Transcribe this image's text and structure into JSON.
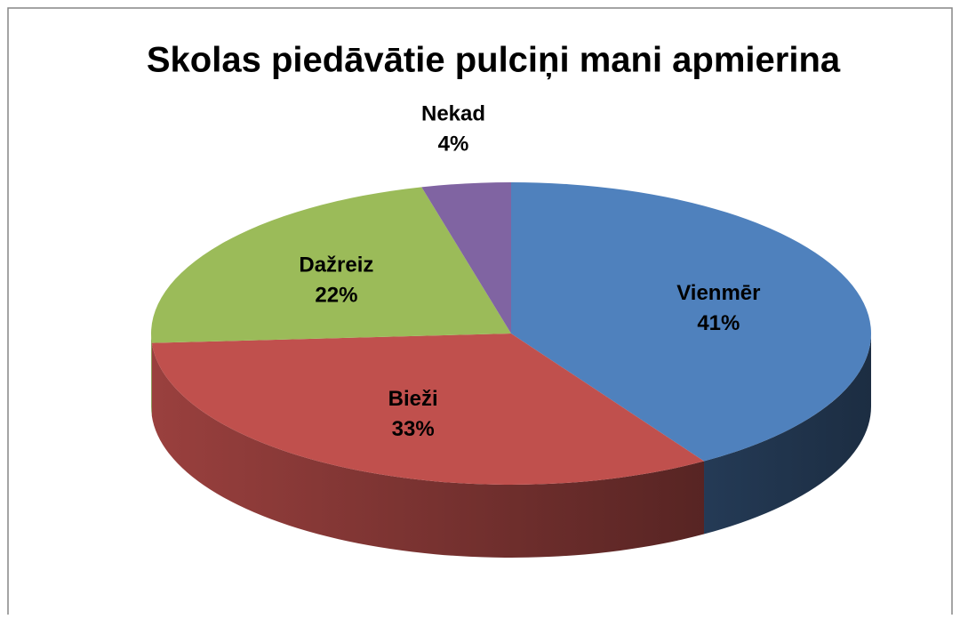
{
  "chart_data": {
    "type": "pie3d",
    "title": "Skolas piedāvātie pulciņi mani apmierina",
    "categories": [
      "Vienmēr",
      "Bieži",
      "Dažreiz",
      "Nekad"
    ],
    "values": [
      41,
      33,
      22,
      4
    ],
    "value_labels": [
      "41%",
      "33%",
      "22%",
      "4%"
    ],
    "colors": [
      "#4f81bd",
      "#c0504d",
      "#9bbb59",
      "#8064a2"
    ]
  }
}
